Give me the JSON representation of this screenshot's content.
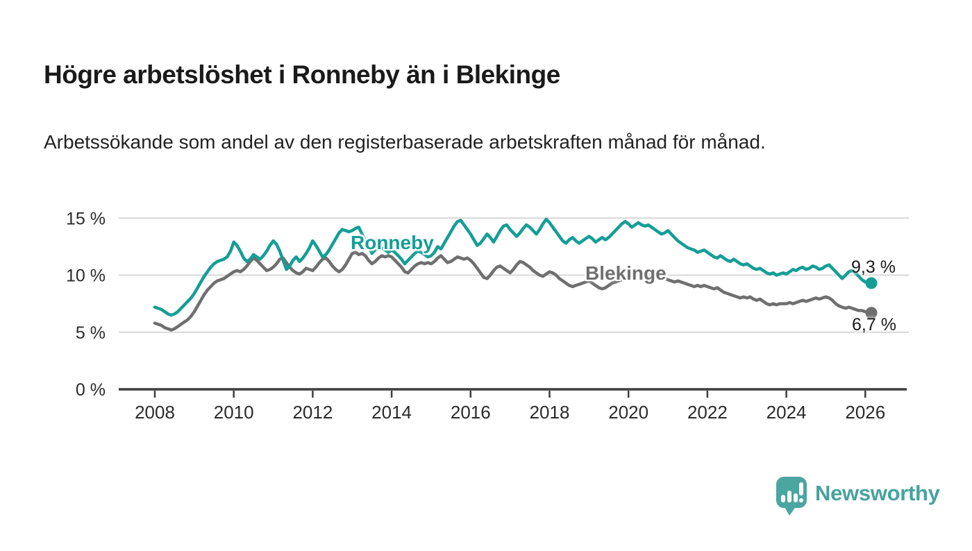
{
  "header": {
    "title": "Högre arbetslöshet i Ronneby än i Blekinge",
    "subtitle": "Arbetssökande som andel av den registerbaserade arbetskraften månad för månad."
  },
  "footer": {
    "brand": "Newsworthy"
  },
  "colors": {
    "ronneby_line": "#149E96",
    "blekinge_line": "#6F6F6F",
    "brand_teal": "#4BA5A0",
    "grid": "#D8D8D8",
    "axis": "#3D3D3D",
    "text": "#1a1a1a"
  },
  "chart_data": {
    "type": "line",
    "title": "Högre arbetslöshet i Ronneby än i Blekinge",
    "subtitle": "Arbetssökande som andel av den registerbaserade arbetskraften månad för månad.",
    "unit": "%",
    "frequency": "monthly",
    "x_start": {
      "year": 2008,
      "month": 1
    },
    "x_end": {
      "year": 2026,
      "month": 2
    },
    "x_ticks": [
      2008,
      2010,
      2012,
      2014,
      2016,
      2018,
      2020,
      2022,
      2024,
      2026
    ],
    "y_ticks": [
      {
        "value": 0,
        "label": "0 %"
      },
      {
        "value": 5,
        "label": "5 %"
      },
      {
        "value": 10,
        "label": "10 %"
      },
      {
        "value": 15,
        "label": "15 %"
      }
    ],
    "ylim": [
      0,
      16.6
    ],
    "grid": "horizontal",
    "legend_position": "inline-labels",
    "series": [
      {
        "name": "Ronneby",
        "color": "#149E96",
        "end_label": "9,3 %",
        "end_value": 9.3,
        "values": [
          7.2,
          7.1,
          7.0,
          6.8,
          6.6,
          6.5,
          6.6,
          6.8,
          7.1,
          7.4,
          7.7,
          8.0,
          8.4,
          8.9,
          9.4,
          9.9,
          10.3,
          10.7,
          11.0,
          11.2,
          11.3,
          11.4,
          11.6,
          12.1,
          12.9,
          12.6,
          12.1,
          11.5,
          11.2,
          11.4,
          11.8,
          11.6,
          11.4,
          11.7,
          12.1,
          12.6,
          13.0,
          12.7,
          12.1,
          11.3,
          10.5,
          10.8,
          11.3,
          11.6,
          11.2,
          11.5,
          11.9,
          12.4,
          13.0,
          12.6,
          12.1,
          11.6,
          11.8,
          12.2,
          12.7,
          13.2,
          13.7,
          14.0,
          13.9,
          13.8,
          13.9,
          14.1,
          14.2,
          13.6,
          13.0,
          12.5,
          11.9,
          12.2,
          12.6,
          12.4,
          12.2,
          12.0,
          12.2,
          12.0,
          11.7,
          11.4,
          11.0,
          11.3,
          11.6,
          11.9,
          12.1,
          12.0,
          11.8,
          11.6,
          11.7,
          12.0,
          12.5,
          12.3,
          12.8,
          13.3,
          13.8,
          14.3,
          14.7,
          14.8,
          14.4,
          14.0,
          13.6,
          13.1,
          12.6,
          12.8,
          13.2,
          13.6,
          13.3,
          12.9,
          13.4,
          13.9,
          14.3,
          14.4,
          14.0,
          13.7,
          13.4,
          13.7,
          14.1,
          14.4,
          14.2,
          13.9,
          13.6,
          14.0,
          14.5,
          14.9,
          14.6,
          14.2,
          13.8,
          13.4,
          13.0,
          12.8,
          13.1,
          13.3,
          13.0,
          12.8,
          13.0,
          13.2,
          13.4,
          13.2,
          12.9,
          13.1,
          13.3,
          13.1,
          13.3,
          13.6,
          13.9,
          14.2,
          14.5,
          14.7,
          14.5,
          14.2,
          14.4,
          14.6,
          14.4,
          14.3,
          14.4,
          14.2,
          14.0,
          13.8,
          13.6,
          13.7,
          13.9,
          13.6,
          13.3,
          13.0,
          12.8,
          12.6,
          12.4,
          12.3,
          12.2,
          12.0,
          12.1,
          12.2,
          12.0,
          11.8,
          11.6,
          11.5,
          11.7,
          11.5,
          11.3,
          11.2,
          11.4,
          11.2,
          11.0,
          10.9,
          11.0,
          10.8,
          10.6,
          10.5,
          10.6,
          10.4,
          10.2,
          10.1,
          10.2,
          10.0,
          10.1,
          10.2,
          10.1,
          10.3,
          10.5,
          10.4,
          10.6,
          10.7,
          10.5,
          10.6,
          10.8,
          10.7,
          10.5,
          10.6,
          10.8,
          10.9,
          10.6,
          10.3,
          10.0,
          9.7,
          10.0,
          10.3,
          10.4,
          10.2,
          9.9,
          9.6,
          9.4,
          9.3
        ]
      },
      {
        "name": "Blekinge",
        "color": "#6F6F6F",
        "end_label": "6,7 %",
        "end_value": 6.7,
        "values": [
          5.8,
          5.7,
          5.6,
          5.4,
          5.3,
          5.2,
          5.3,
          5.5,
          5.7,
          5.9,
          6.1,
          6.4,
          6.8,
          7.3,
          7.8,
          8.3,
          8.7,
          9.0,
          9.3,
          9.5,
          9.6,
          9.7,
          9.9,
          10.1,
          10.3,
          10.4,
          10.3,
          10.5,
          10.8,
          11.2,
          11.5,
          11.3,
          11.0,
          10.7,
          10.4,
          10.5,
          10.7,
          11.0,
          11.4,
          11.5,
          11.1,
          10.7,
          10.4,
          10.2,
          10.1,
          10.3,
          10.6,
          10.5,
          10.4,
          10.7,
          11.1,
          11.4,
          11.5,
          11.2,
          10.8,
          10.5,
          10.3,
          10.5,
          10.9,
          11.4,
          11.9,
          12.0,
          11.8,
          11.9,
          11.7,
          11.3,
          11.0,
          11.2,
          11.5,
          11.7,
          11.6,
          11.7,
          11.6,
          11.3,
          11.0,
          10.7,
          10.3,
          10.2,
          10.5,
          10.8,
          11.0,
          11.1,
          11.0,
          11.1,
          11.0,
          11.2,
          11.5,
          11.7,
          11.4,
          11.1,
          11.2,
          11.4,
          11.6,
          11.5,
          11.4,
          11.5,
          11.3,
          11.0,
          10.6,
          10.2,
          9.8,
          9.7,
          10.0,
          10.4,
          10.7,
          10.8,
          10.6,
          10.4,
          10.2,
          10.5,
          10.9,
          11.2,
          11.1,
          10.9,
          10.7,
          10.4,
          10.2,
          10.0,
          9.9,
          10.1,
          10.3,
          10.2,
          10.0,
          9.7,
          9.5,
          9.3,
          9.1,
          9.0,
          9.1,
          9.2,
          9.3,
          9.4,
          9.5,
          9.3,
          9.1,
          8.9,
          8.8,
          8.9,
          9.1,
          9.3,
          9.4,
          9.5,
          9.6,
          9.8,
          10.0,
          10.1,
          10.3,
          10.5,
          10.4,
          10.3,
          10.2,
          10.1,
          10.0,
          9.9,
          9.8,
          9.7,
          9.6,
          9.5,
          9.4,
          9.5,
          9.4,
          9.3,
          9.2,
          9.1,
          9.0,
          9.1,
          9.0,
          9.1,
          9.0,
          8.9,
          8.8,
          8.9,
          8.7,
          8.5,
          8.4,
          8.3,
          8.2,
          8.1,
          8.0,
          8.1,
          8.0,
          8.1,
          7.9,
          7.8,
          7.9,
          7.7,
          7.5,
          7.4,
          7.5,
          7.4,
          7.5,
          7.5,
          7.5,
          7.6,
          7.5,
          7.6,
          7.7,
          7.8,
          7.7,
          7.8,
          7.9,
          8.0,
          7.9,
          8.0,
          8.1,
          8.0,
          7.8,
          7.5,
          7.3,
          7.2,
          7.1,
          7.2,
          7.1,
          7.0,
          6.9,
          6.9,
          6.8,
          6.7
        ]
      }
    ]
  }
}
